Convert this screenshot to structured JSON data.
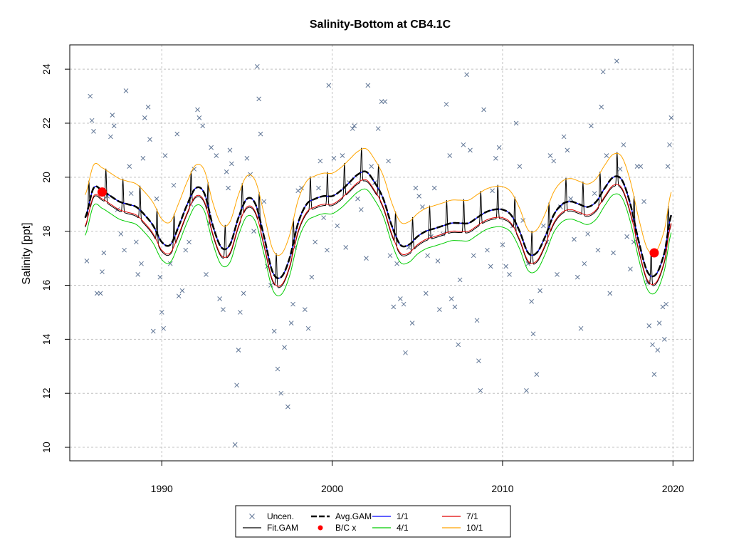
{
  "chart_data": {
    "type": "scatter",
    "title": "Salinity-Bottom at CB4.1C",
    "xlabel": "",
    "ylabel": "Salinity [ppt]",
    "xlim": [
      1984.6,
      2021.2
    ],
    "ylim": [
      9.5,
      24.9
    ],
    "x_ticks": [
      1990,
      2000,
      2010,
      2020
    ],
    "y_ticks": [
      10,
      12,
      14,
      16,
      18,
      20,
      22,
      24
    ],
    "grid": true,
    "legend_position": "bottom-center",
    "colors": {
      "uncensored": "#5f7595",
      "fit_gam": "#000000",
      "avg_gam": "#000000",
      "bc": "#ff0000",
      "d1_1": "#0000ff",
      "d4_1": "#00cc00",
      "d7_1": "#e00000",
      "d10_1": "#ffa500",
      "grid": "#c0c0c0"
    },
    "legend": [
      {
        "key": "uncensored",
        "label": "Uncen."
      },
      {
        "key": "avg_gam",
        "label": "Avg.GAM"
      },
      {
        "key": "d1_1",
        "label": "1/1"
      },
      {
        "key": "d7_1",
        "label": "7/1"
      },
      {
        "key": "fit_gam",
        "label": "Fit.GAM"
      },
      {
        "key": "bc",
        "label": "B/C x"
      },
      {
        "key": "d4_1",
        "label": "4/1"
      },
      {
        "key": "d10_1",
        "label": "10/1"
      }
    ],
    "avg_gam": {
      "x": [
        1985.5,
        1986.0,
        1986.5,
        1987.0,
        1987.5,
        1988.0,
        1988.5,
        1989.0,
        1989.5,
        1990.0,
        1990.5,
        1991.0,
        1991.5,
        1992.0,
        1992.5,
        1993.0,
        1993.5,
        1994.0,
        1994.5,
        1995.0,
        1995.5,
        1996.0,
        1996.5,
        1997.0,
        1997.5,
        1998.0,
        1998.5,
        1999.0,
        1999.5,
        2000.0,
        2000.5,
        2001.0,
        2001.5,
        2002.0,
        2002.5,
        2003.0,
        2003.5,
        2004.0,
        2004.5,
        2005.0,
        2005.5,
        2006.0,
        2006.5,
        2007.0,
        2007.5,
        2008.0,
        2008.5,
        2009.0,
        2009.5,
        2010.0,
        2010.5,
        2011.0,
        2011.5,
        2012.0,
        2012.5,
        2013.0,
        2013.5,
        2014.0,
        2014.5,
        2015.0,
        2015.5,
        2016.0,
        2016.5,
        2017.0,
        2017.5,
        2018.0,
        2018.5,
        2019.0,
        2019.5,
        2019.9
      ],
      "y": [
        18.5,
        19.6,
        19.5,
        19.3,
        19.1,
        19.0,
        18.9,
        18.6,
        18.2,
        17.6,
        17.5,
        18.2,
        19.0,
        19.6,
        19.4,
        18.2,
        17.4,
        17.5,
        18.5,
        19.2,
        19.0,
        17.8,
        16.5,
        16.3,
        17.0,
        18.3,
        19.0,
        19.2,
        19.3,
        19.3,
        19.5,
        19.8,
        20.1,
        20.2,
        19.8,
        19.2,
        18.2,
        17.5,
        17.5,
        17.8,
        18.0,
        18.1,
        18.2,
        18.3,
        18.3,
        18.3,
        18.5,
        18.7,
        18.8,
        18.8,
        18.6,
        18.0,
        17.2,
        17.2,
        17.8,
        18.6,
        19.0,
        19.1,
        19.0,
        18.9,
        19.1,
        19.6,
        20.0,
        19.9,
        19.0,
        17.6,
        16.5,
        16.4,
        17.2,
        18.6
      ]
    },
    "offsets": {
      "d1_1": 0.0,
      "d4_1": -0.65,
      "d7_1": -0.3,
      "d10_1": 0.85
    },
    "seasonal_amplitude": 1.25,
    "fit_peak_phase": 0.72,
    "bc_points": [
      {
        "x": 1986.5,
        "y": 19.45
      },
      {
        "x": 2018.9,
        "y": 17.2
      }
    ],
    "observations": [
      [
        1985.6,
        16.9
      ],
      [
        1985.8,
        23.0
      ],
      [
        1985.9,
        22.1
      ],
      [
        1986.0,
        21.7
      ],
      [
        1986.2,
        15.7
      ],
      [
        1986.4,
        15.7
      ],
      [
        1986.5,
        16.5
      ],
      [
        1986.6,
        17.2
      ],
      [
        1986.8,
        19.3
      ],
      [
        1987.0,
        21.5
      ],
      [
        1987.1,
        22.3
      ],
      [
        1987.2,
        21.9
      ],
      [
        1987.4,
        18.8
      ],
      [
        1987.6,
        17.9
      ],
      [
        1987.8,
        17.3
      ],
      [
        1987.9,
        23.2
      ],
      [
        1988.1,
        20.4
      ],
      [
        1988.2,
        19.4
      ],
      [
        1988.5,
        17.6
      ],
      [
        1988.6,
        16.4
      ],
      [
        1988.8,
        16.8
      ],
      [
        1988.9,
        20.7
      ],
      [
        1989.0,
        22.2
      ],
      [
        1989.2,
        22.6
      ],
      [
        1989.3,
        21.4
      ],
      [
        1989.5,
        14.3
      ],
      [
        1989.7,
        19.2
      ],
      [
        1989.9,
        16.3
      ],
      [
        1990.0,
        15.0
      ],
      [
        1990.1,
        14.4
      ],
      [
        1990.2,
        20.8
      ],
      [
        1990.5,
        16.8
      ],
      [
        1990.7,
        19.7
      ],
      [
        1990.9,
        21.6
      ],
      [
        1991.0,
        15.6
      ],
      [
        1991.2,
        15.8
      ],
      [
        1991.4,
        17.3
      ],
      [
        1991.6,
        17.6
      ],
      [
        1991.7,
        19.0
      ],
      [
        1991.9,
        20.3
      ],
      [
        1992.1,
        22.5
      ],
      [
        1992.2,
        22.2
      ],
      [
        1992.4,
        21.9
      ],
      [
        1992.6,
        16.4
      ],
      [
        1992.8,
        18.3
      ],
      [
        1992.9,
        21.1
      ],
      [
        1993.2,
        20.8
      ],
      [
        1993.4,
        15.5
      ],
      [
        1993.6,
        15.1
      ],
      [
        1993.8,
        20.2
      ],
      [
        1993.9,
        19.6
      ],
      [
        1994.0,
        21.0
      ],
      [
        1994.1,
        20.5
      ],
      [
        1994.3,
        10.1
      ],
      [
        1994.4,
        12.3
      ],
      [
        1994.5,
        13.6
      ],
      [
        1994.6,
        15.0
      ],
      [
        1994.8,
        15.7
      ],
      [
        1995.0,
        20.7
      ],
      [
        1995.2,
        20.1
      ],
      [
        1995.4,
        18.0
      ],
      [
        1995.6,
        24.1
      ],
      [
        1995.7,
        22.9
      ],
      [
        1995.8,
        21.6
      ],
      [
        1996.0,
        19.1
      ],
      [
        1996.2,
        16.7
      ],
      [
        1996.4,
        16.0
      ],
      [
        1996.6,
        14.3
      ],
      [
        1996.8,
        12.9
      ],
      [
        1997.0,
        12.0
      ],
      [
        1997.2,
        13.7
      ],
      [
        1997.4,
        11.5
      ],
      [
        1997.6,
        14.6
      ],
      [
        1997.7,
        15.3
      ],
      [
        1997.8,
        17.4
      ],
      [
        1998.0,
        19.5
      ],
      [
        1998.2,
        19.6
      ],
      [
        1998.4,
        15.1
      ],
      [
        1998.6,
        14.4
      ],
      [
        1998.8,
        16.3
      ],
      [
        1999.0,
        17.6
      ],
      [
        1999.2,
        19.6
      ],
      [
        1999.3,
        20.6
      ],
      [
        1999.5,
        18.5
      ],
      [
        1999.7,
        17.3
      ],
      [
        1999.8,
        23.4
      ],
      [
        2000.1,
        20.7
      ],
      [
        2000.3,
        18.2
      ],
      [
        2000.6,
        20.8
      ],
      [
        2000.8,
        17.4
      ],
      [
        2001.0,
        19.8
      ],
      [
        2001.2,
        21.8
      ],
      [
        2001.3,
        21.9
      ],
      [
        2001.5,
        19.2
      ],
      [
        2001.7,
        18.8
      ],
      [
        2002.0,
        17.0
      ],
      [
        2002.1,
        23.4
      ],
      [
        2002.3,
        20.4
      ],
      [
        2002.5,
        19.8
      ],
      [
        2002.7,
        21.8
      ],
      [
        2002.9,
        22.8
      ],
      [
        2003.1,
        22.8
      ],
      [
        2003.3,
        20.6
      ],
      [
        2003.4,
        17.1
      ],
      [
        2003.6,
        15.2
      ],
      [
        2003.8,
        16.8
      ],
      [
        2004.0,
        15.5
      ],
      [
        2004.2,
        15.3
      ],
      [
        2004.3,
        13.5
      ],
      [
        2004.5,
        17.4
      ],
      [
        2004.7,
        14.6
      ],
      [
        2004.9,
        19.6
      ],
      [
        2005.1,
        19.3
      ],
      [
        2005.3,
        18.9
      ],
      [
        2005.5,
        15.7
      ],
      [
        2005.6,
        17.1
      ],
      [
        2005.8,
        17.8
      ],
      [
        2006.0,
        19.6
      ],
      [
        2006.2,
        16.9
      ],
      [
        2006.3,
        15.1
      ],
      [
        2006.5,
        17.9
      ],
      [
        2006.7,
        22.7
      ],
      [
        2006.9,
        20.8
      ],
      [
        2007.0,
        15.5
      ],
      [
        2007.2,
        15.2
      ],
      [
        2007.4,
        13.8
      ],
      [
        2007.5,
        16.2
      ],
      [
        2007.7,
        21.2
      ],
      [
        2007.9,
        23.8
      ],
      [
        2008.1,
        21.0
      ],
      [
        2008.3,
        17.1
      ],
      [
        2008.5,
        14.7
      ],
      [
        2008.6,
        13.2
      ],
      [
        2008.7,
        12.1
      ],
      [
        2008.9,
        22.5
      ],
      [
        2009.1,
        17.3
      ],
      [
        2009.3,
        16.7
      ],
      [
        2009.4,
        19.5
      ],
      [
        2009.6,
        20.7
      ],
      [
        2009.8,
        21.1
      ],
      [
        2010.0,
        17.5
      ],
      [
        2010.2,
        16.7
      ],
      [
        2010.4,
        16.4
      ],
      [
        2010.6,
        18.2
      ],
      [
        2010.8,
        22.0
      ],
      [
        2011.0,
        20.4
      ],
      [
        2011.2,
        18.4
      ],
      [
        2011.4,
        12.1
      ],
      [
        2011.5,
        16.8
      ],
      [
        2011.7,
        15.4
      ],
      [
        2011.8,
        14.2
      ],
      [
        2012.0,
        12.7
      ],
      [
        2012.2,
        15.8
      ],
      [
        2012.4,
        18.2
      ],
      [
        2012.6,
        17.6
      ],
      [
        2012.8,
        20.8
      ],
      [
        2013.0,
        20.6
      ],
      [
        2013.2,
        16.4
      ],
      [
        2013.4,
        18.9
      ],
      [
        2013.6,
        21.5
      ],
      [
        2013.8,
        21.0
      ],
      [
        2014.0,
        19.2
      ],
      [
        2014.2,
        17.7
      ],
      [
        2014.4,
        16.3
      ],
      [
        2014.6,
        14.4
      ],
      [
        2014.8,
        16.8
      ],
      [
        2015.0,
        17.9
      ],
      [
        2015.2,
        21.9
      ],
      [
        2015.4,
        19.4
      ],
      [
        2015.6,
        17.3
      ],
      [
        2015.8,
        22.6
      ],
      [
        2015.9,
        23.9
      ],
      [
        2016.1,
        20.8
      ],
      [
        2016.3,
        15.7
      ],
      [
        2016.5,
        17.2
      ],
      [
        2016.7,
        24.3
      ],
      [
        2016.9,
        20.3
      ],
      [
        2017.1,
        21.2
      ],
      [
        2017.3,
        17.8
      ],
      [
        2017.5,
        16.6
      ],
      [
        2017.7,
        17.6
      ],
      [
        2017.9,
        20.4
      ],
      [
        2018.1,
        20.4
      ],
      [
        2018.3,
        19.1
      ],
      [
        2018.5,
        16.1
      ],
      [
        2018.6,
        14.5
      ],
      [
        2018.8,
        13.8
      ],
      [
        2018.9,
        12.7
      ],
      [
        2019.1,
        13.6
      ],
      [
        2019.2,
        14.6
      ],
      [
        2019.4,
        15.2
      ],
      [
        2019.5,
        14.0
      ],
      [
        2019.6,
        15.3
      ],
      [
        2019.7,
        20.4
      ],
      [
        2019.8,
        21.2
      ],
      [
        2019.9,
        22.2
      ]
    ]
  }
}
